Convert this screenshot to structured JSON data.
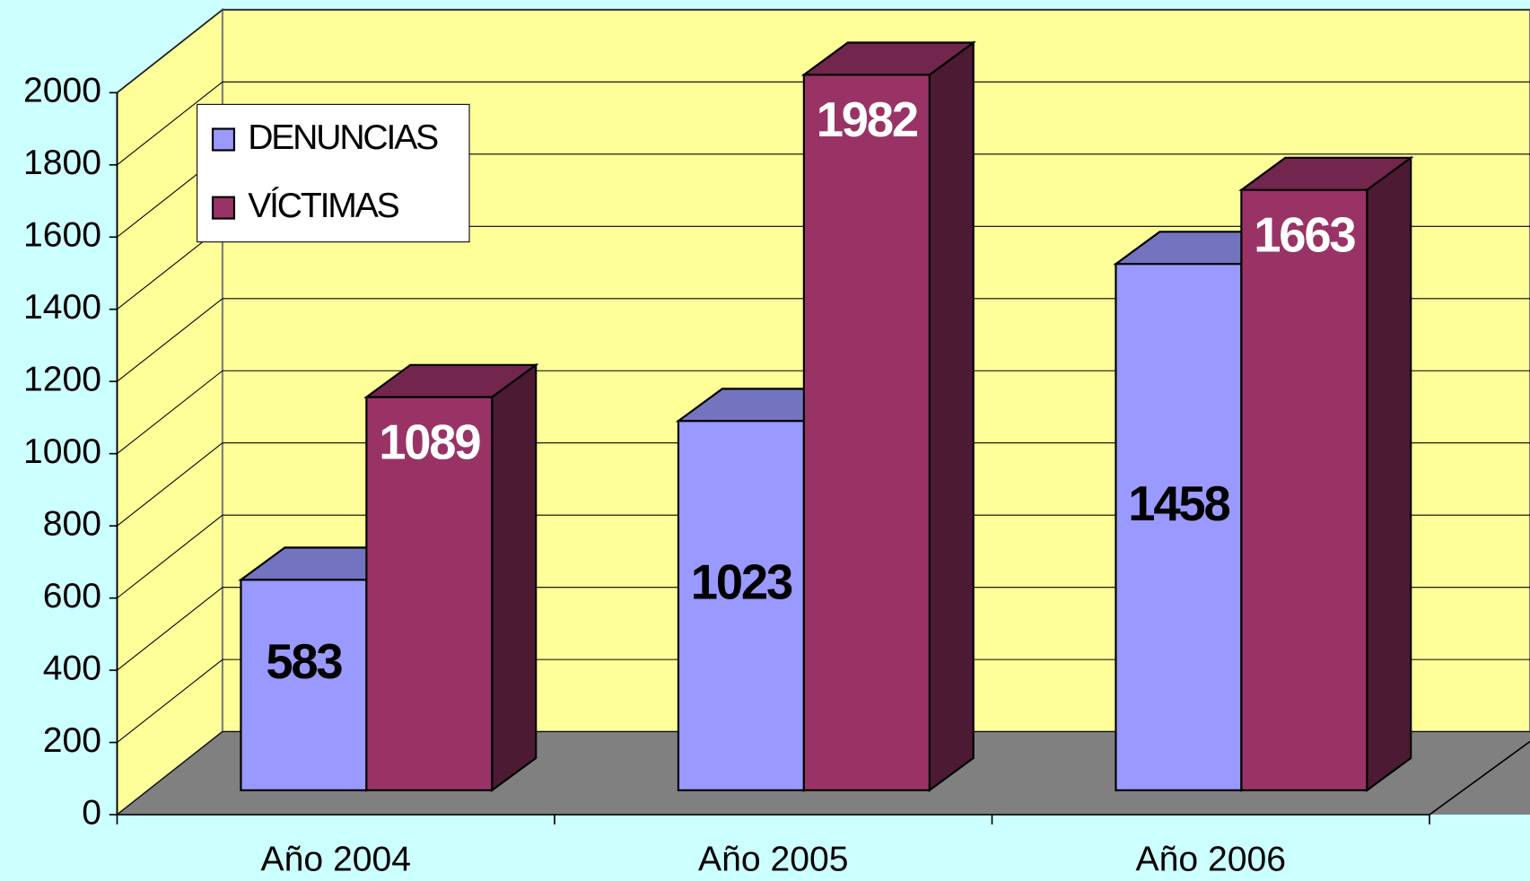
{
  "chart_data": {
    "type": "bar3d",
    "categories": [
      "Año 2004",
      "Año 2005",
      "Año 2006"
    ],
    "series": [
      {
        "name": "DENUNCIAS",
        "color": "#9999ff",
        "values": [
          583,
          1023,
          1458
        ]
      },
      {
        "name": "VÍCTIMAS",
        "color": "#993366",
        "values": [
          1089,
          1982,
          1663
        ]
      }
    ],
    "ylim": [
      0,
      2000
    ],
    "yticks": [
      0,
      200,
      400,
      600,
      800,
      1000,
      1200,
      1400,
      1600,
      1800,
      2000
    ],
    "grid": true,
    "legend": "top-left"
  }
}
